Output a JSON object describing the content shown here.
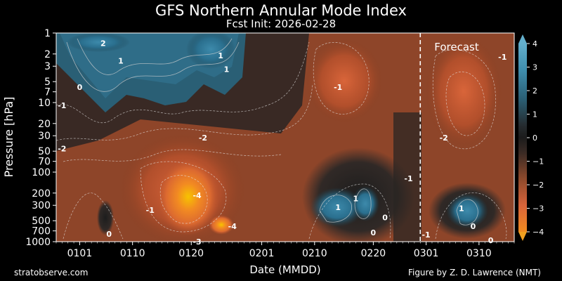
{
  "header": {
    "title": "GFS Northern Annular Mode Index",
    "subtitle": "Fcst Init: 2026-02-28"
  },
  "footer": {
    "left": "stratobserve.com",
    "right": "Figure by Z. D. Lawrence (NMT)"
  },
  "chart_data": {
    "type": "heatmap",
    "xlabel": "Date (MMDD)",
    "ylabel": "Pressure [hPa]",
    "x_ticks": [
      "0101",
      "0110",
      "0120",
      "0201",
      "0210",
      "0220",
      "0301",
      "0310"
    ],
    "y_ticks": [
      1,
      2,
      3,
      5,
      7,
      10,
      20,
      30,
      50,
      70,
      100,
      200,
      300,
      500,
      700,
      1000
    ],
    "y_scale": "log",
    "y_reversed": true,
    "ylim": [
      1000,
      1
    ],
    "x_range": [
      "1228",
      "0316"
    ],
    "forecast_start": "0228",
    "forecast_label": "Forecast",
    "colorbar": {
      "ticks": [
        4,
        3,
        2,
        1,
        0,
        -1,
        -2,
        -3,
        -4
      ],
      "range": [
        -4,
        4
      ],
      "extend": "both",
      "low_color": "#f0a020",
      "high_color": "#60a8c8"
    },
    "colors": {
      "positive": "#2a6f8e",
      "neutral": "#1f1f1f",
      "negative": "#b8512c"
    },
    "contour_labels": [
      {
        "text": "2",
        "date": "0105",
        "p": 1.4
      },
      {
        "text": "1",
        "date": "0108",
        "p": 2.5
      },
      {
        "text": "0",
        "date": "0101",
        "p": 6
      },
      {
        "text": "-1",
        "date": "1229",
        "p": 11
      },
      {
        "text": "-2",
        "date": "1229",
        "p": 46
      },
      {
        "text": "-2",
        "date": "0122",
        "p": 32
      },
      {
        "text": "1",
        "date": "0125",
        "p": 2.1
      },
      {
        "text": "1",
        "date": "0126",
        "p": 3.3
      },
      {
        "text": "-1",
        "date": "0214",
        "p": 6
      },
      {
        "text": "-1",
        "date": "0226",
        "p": 123
      },
      {
        "text": "-1",
        "date": "0113",
        "p": 350
      },
      {
        "text": "-4",
        "date": "0121",
        "p": 215
      },
      {
        "text": "-4",
        "date": "0127",
        "p": 600
      },
      {
        "text": "-3",
        "date": "0121",
        "p": 1000
      },
      {
        "text": "0",
        "date": "0106",
        "p": 770
      },
      {
        "text": "1",
        "date": "0214",
        "p": 320
      },
      {
        "text": "1",
        "date": "0217",
        "p": 240
      },
      {
        "text": "0",
        "date": "0222",
        "p": 450
      },
      {
        "text": "0",
        "date": "0220",
        "p": 740
      },
      {
        "text": "-2",
        "date": "0304",
        "p": 32
      },
      {
        "text": "-1",
        "date": "0314",
        "p": 2.2
      },
      {
        "text": "1",
        "date": "0307",
        "p": 330
      },
      {
        "text": "0",
        "date": "0309",
        "p": 600
      },
      {
        "text": "-1",
        "date": "0301",
        "p": 790
      },
      {
        "text": "0",
        "date": "0312",
        "p": 950
      }
    ]
  }
}
